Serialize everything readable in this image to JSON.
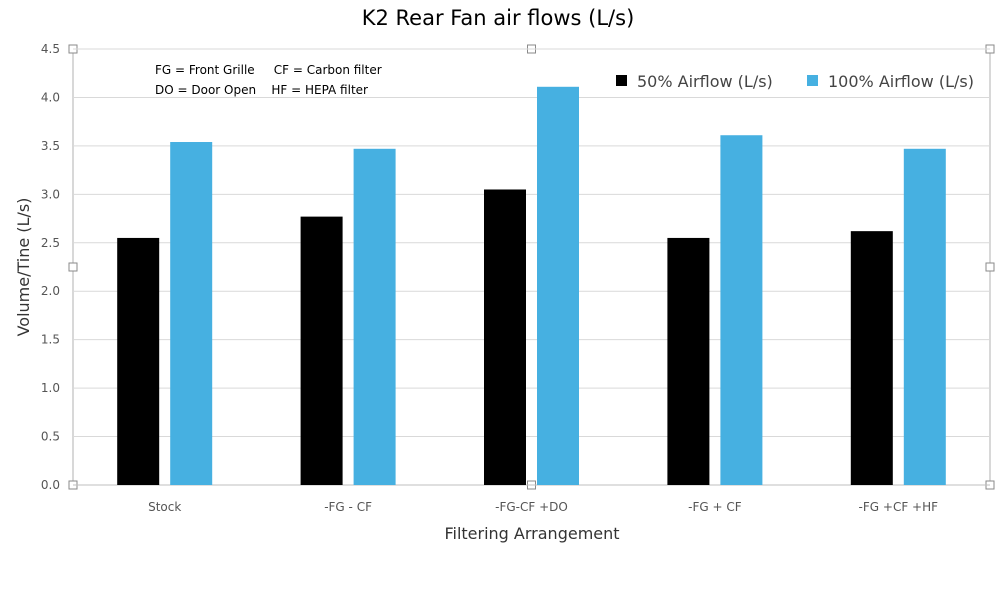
{
  "chart_data": {
    "type": "bar",
    "title": "K2 Rear Fan air flows (L/s)",
    "xlabel": "Filtering Arrangement",
    "ylabel": "Volume/Tine (L/s)",
    "ylim": [
      0,
      4.5
    ],
    "yticks": [
      "0.0",
      "0.5",
      "1.0",
      "1.5",
      "2.0",
      "2.5",
      "3.0",
      "3.5",
      "4.0",
      "4.5"
    ],
    "categories": [
      "Stock",
      "-FG -  CF",
      "-FG-CF +DO",
      "-FG + CF",
      "-FG +CF +HF"
    ],
    "series": [
      {
        "name": "50% Airflow (L/s)",
        "values": [
          2.55,
          2.77,
          3.05,
          2.55,
          2.62
        ],
        "color": "#000000"
      },
      {
        "name": "100% Airflow (L/s)",
        "values": [
          3.54,
          3.47,
          4.11,
          3.61,
          3.47
        ],
        "color": "#46b0e1"
      }
    ],
    "grid": true,
    "legend_position": "top-right",
    "annotations": [
      "FG = Front Grille     CF = Carbon filter",
      "DO = Door Open    HF = HEPA filter"
    ]
  }
}
